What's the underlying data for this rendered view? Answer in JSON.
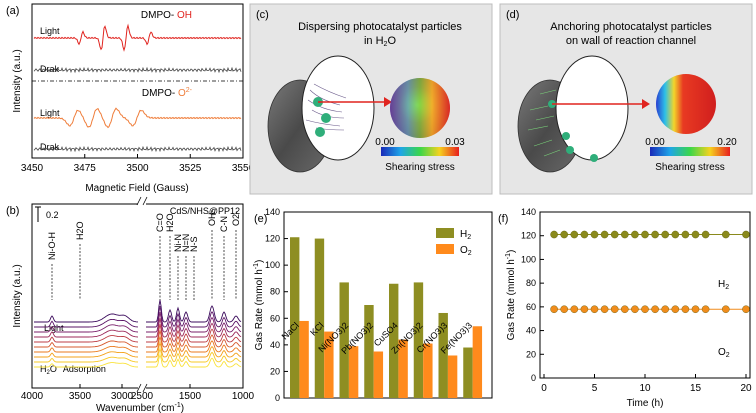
{
  "panels": {
    "a": {
      "label": "(a)",
      "ylabel": "Intensity (a.u.)",
      "xlabel": "Magnetic Field (Gauss)",
      "xticks": [
        "3450",
        "3475",
        "3500",
        "3525",
        "3550"
      ],
      "top_title_prefix": "DMPO- ",
      "top_title_species": "OH",
      "bottom_title_prefix": "DMPO- ",
      "bottom_title_species": "O",
      "bottom_title_sup": "2-",
      "light": "Light",
      "dark": "Drak",
      "colors": {
        "oh": "#e0241f",
        "o2": "#ef7d3a",
        "dark": "#444444"
      }
    },
    "b": {
      "label": "(b)",
      "ylabel": "Intensity (a.u.)",
      "xlabel": "Wavenumber (cm",
      "xlabel_sup": "-1",
      "xlabel_end": ")",
      "scale": "0.2",
      "sample": "CdS/NHS@PP12",
      "light": "Light",
      "adsorption_species": "H",
      "adsorption_sub": "2",
      "adsorption_tail": "O",
      "adsorption": "Adsorption",
      "xticks": [
        "4000",
        "3500",
        "3000",
        "2500",
        "1500",
        "1000"
      ],
      "peaks": [
        "Ni-O-H",
        "H2O",
        "C=O",
        "H2O",
        "Ni-N",
        "N=N",
        "N-S",
        "OH-",
        "C-N",
        "O2-"
      ]
    },
    "c": {
      "label": "(c)",
      "title_line1": "Dispersing photocatalyst particles",
      "title_line2": "in H",
      "title_sub": "2",
      "title_end": "O",
      "scale_min": "0.00",
      "scale_max": "0.03",
      "scale_label": "Shearing stress"
    },
    "d": {
      "label": "(d)",
      "title_line1": "Anchoring photocatalyst particles",
      "title_line2": "on wall of reaction channel",
      "scale_min": "0.00",
      "scale_max": "0.20",
      "scale_label": "Shearing stress"
    }
  },
  "chart_data": [
    {
      "id": "e",
      "label": "(e)",
      "type": "bar",
      "ylabel": "Gas Rate (mmol h",
      "ylabel_sup": "-1",
      "ylabel_end": ")",
      "ylim": [
        0,
        140
      ],
      "yticks": [
        0,
        20,
        40,
        60,
        80,
        100,
        120,
        140
      ],
      "categories": [
        "NaCl",
        "KCl",
        "Ni(NO3)2",
        "Pb(NO3)2",
        "CuSO4",
        "Zn(NO3)2",
        "Cr(NO3)3",
        "Fe(NO3)3"
      ],
      "series": [
        {
          "name": "H2",
          "color": "#8e8e22",
          "values": [
            121,
            120,
            87,
            70,
            86,
            87,
            64,
            38
          ]
        },
        {
          "name": "O2",
          "color": "#ff8a1c",
          "values": [
            58,
            50,
            39,
            35,
            44,
            41,
            32,
            54
          ]
        }
      ],
      "legend": [
        "H",
        "O"
      ],
      "legend_sub": "2",
      "legend_position": "top-right"
    },
    {
      "id": "f",
      "label": "(f)",
      "type": "line",
      "ylabel": "Gas Rate (mmol h",
      "ylabel_sup": "-1",
      "ylabel_end": ")",
      "xlabel": "Time (h)",
      "xlim": [
        0,
        20
      ],
      "ylim": [
        0,
        140
      ],
      "xticks": [
        0,
        5,
        10,
        15,
        20
      ],
      "yticks": [
        0,
        20,
        40,
        60,
        80,
        100,
        120,
        140
      ],
      "x": [
        1,
        2,
        3,
        4,
        5,
        6,
        7,
        8,
        9,
        10,
        11,
        12,
        13,
        14,
        15,
        16,
        18,
        20
      ],
      "series": [
        {
          "name": "H2",
          "color": "#8a8a1c",
          "y": [
            121,
            121,
            121,
            121,
            121,
            121,
            121,
            121,
            121,
            121,
            121,
            121,
            121,
            121,
            121,
            121,
            121,
            121
          ]
        },
        {
          "name": "O2",
          "color": "#f08c1c",
          "y": [
            58,
            58,
            58,
            58,
            58,
            58,
            58,
            58,
            58,
            58,
            58,
            58,
            58,
            58,
            58,
            58,
            58,
            58
          ]
        }
      ],
      "labels": [
        "H",
        "O"
      ],
      "labels_sub": "2"
    }
  ]
}
